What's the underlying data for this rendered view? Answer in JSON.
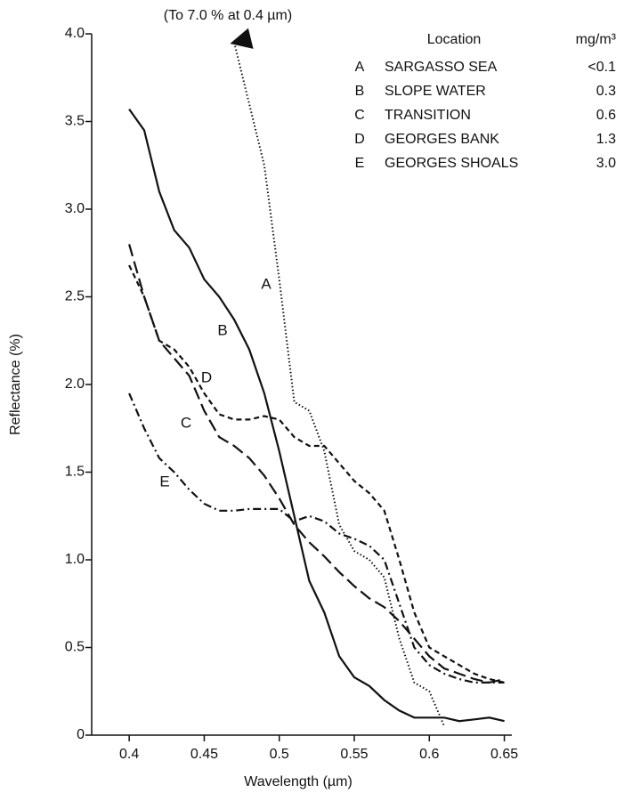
{
  "chart_data": {
    "type": "line",
    "annotation": "(To 7.0 %  at 0.4 µm)",
    "xlabel": "Wavelength (µm)",
    "ylabel": "Reflectance (%)",
    "x": [
      0.4,
      0.41,
      0.42,
      0.43,
      0.44,
      0.45,
      0.46,
      0.47,
      0.48,
      0.49,
      0.5,
      0.51,
      0.52,
      0.53,
      0.54,
      0.55,
      0.56,
      0.57,
      0.58,
      0.59,
      0.6,
      0.61,
      0.62,
      0.63,
      0.64,
      0.65
    ],
    "series": [
      {
        "name": "A",
        "color": "#111111",
        "linestyle": "dotted",
        "values": [
          null,
          null,
          null,
          null,
          null,
          null,
          null,
          3.95,
          3.6,
          3.25,
          2.6,
          1.9,
          1.85,
          1.62,
          1.2,
          1.05,
          1.0,
          0.9,
          0.55,
          0.3,
          0.25,
          0.05,
          null,
          null,
          null,
          null
        ]
      },
      {
        "name": "B",
        "color": "#111111",
        "linestyle": "solid",
        "values": [
          3.57,
          3.45,
          3.1,
          2.88,
          2.78,
          2.6,
          2.5,
          2.37,
          2.2,
          1.95,
          1.62,
          1.25,
          0.88,
          0.7,
          0.45,
          0.33,
          0.28,
          0.2,
          0.14,
          0.1,
          0.1,
          0.1,
          0.08,
          0.09,
          0.1,
          0.08
        ]
      },
      {
        "name": "C",
        "color": "#111111",
        "linestyle": "long-dash",
        "values": [
          2.8,
          2.5,
          2.25,
          2.15,
          2.05,
          1.85,
          1.7,
          1.65,
          1.58,
          1.48,
          1.35,
          1.2,
          1.1,
          1.02,
          0.93,
          0.85,
          0.78,
          0.73,
          0.65,
          0.55,
          0.45,
          0.38,
          0.35,
          0.32,
          0.3,
          0.32
        ]
      },
      {
        "name": "D",
        "color": "#111111",
        "linestyle": "short-dash",
        "values": [
          2.68,
          2.5,
          2.25,
          2.2,
          2.1,
          1.95,
          1.83,
          1.8,
          1.8,
          1.82,
          1.8,
          1.7,
          1.65,
          1.65,
          1.55,
          1.45,
          1.38,
          1.28,
          1.0,
          0.7,
          0.5,
          0.45,
          0.4,
          0.35,
          0.32,
          0.3
        ]
      },
      {
        "name": "E",
        "color": "#111111",
        "linestyle": "dash-dot",
        "values": [
          1.95,
          1.75,
          1.58,
          1.5,
          1.4,
          1.32,
          1.28,
          1.28,
          1.29,
          1.29,
          1.29,
          1.22,
          1.25,
          1.22,
          1.15,
          1.12,
          1.08,
          1.0,
          0.75,
          0.5,
          0.4,
          0.35,
          0.32,
          0.3,
          0.3,
          0.3
        ]
      }
    ],
    "legend_table": {
      "header": [
        "Location",
        "mg/m³"
      ],
      "rows": [
        [
          "SARGASSO SEA",
          "<0.1"
        ],
        [
          "SLOPE WATER",
          "0.3"
        ],
        [
          "TRANSITION",
          "0.6"
        ],
        [
          "GEORGES BANK",
          "1.3"
        ],
        [
          "GEORGES SHOALS",
          "3.0"
        ]
      ]
    },
    "xlim": [
      0.375,
      0.655
    ],
    "ylim": [
      0,
      4
    ],
    "xticks": [
      0.4,
      0.45,
      0.5,
      0.55,
      0.6,
      0.65
    ],
    "yticks": [
      0,
      0.5,
      {
        "value": 1,
        "label": "1.0"
      },
      1.5,
      {
        "value": 2,
        "label": "2.0"
      },
      2.5,
      {
        "value": 3,
        "label": "3.0"
      },
      3.5,
      {
        "value": 4,
        "label": "4.0"
      }
    ],
    "grid": false
  }
}
